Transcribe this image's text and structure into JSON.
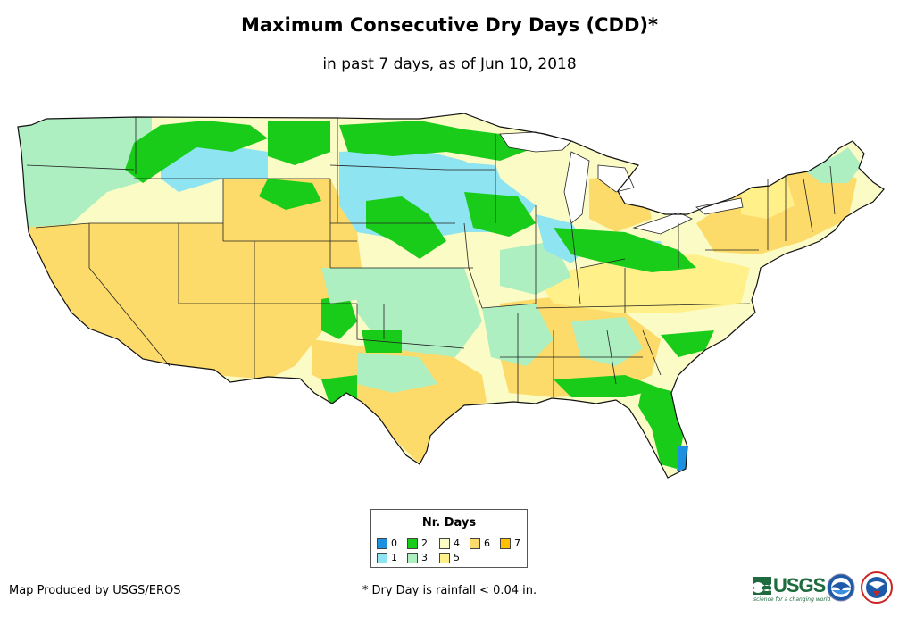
{
  "title": "Maximum Consecutive Dry Days (CDD)*",
  "subtitle": "in past 7 days, as of Jun 10, 2018",
  "legend": {
    "title": "Nr. Days",
    "items": [
      {
        "label": "0",
        "color": "#1e90e0"
      },
      {
        "label": "1",
        "color": "#8fe4f2"
      },
      {
        "label": "2",
        "color": "#19cc19"
      },
      {
        "label": "3",
        "color": "#adefc0"
      },
      {
        "label": "4",
        "color": "#fbfbc6"
      },
      {
        "label": "5",
        "color": "#fff08a"
      },
      {
        "label": "6",
        "color": "#fcdb6a"
      },
      {
        "label": "7",
        "color": "#ffc000"
      }
    ]
  },
  "credit": "Map Produced by USGS/EROS",
  "footnote": "* Dry Day is rainfall < 0.04 in.",
  "logos": {
    "usgs_text": "USGS",
    "usgs_tagline": "science for a changing world",
    "icons": [
      "usgs-logo",
      "noaa-logo-icon",
      "nws-logo-icon"
    ]
  }
}
